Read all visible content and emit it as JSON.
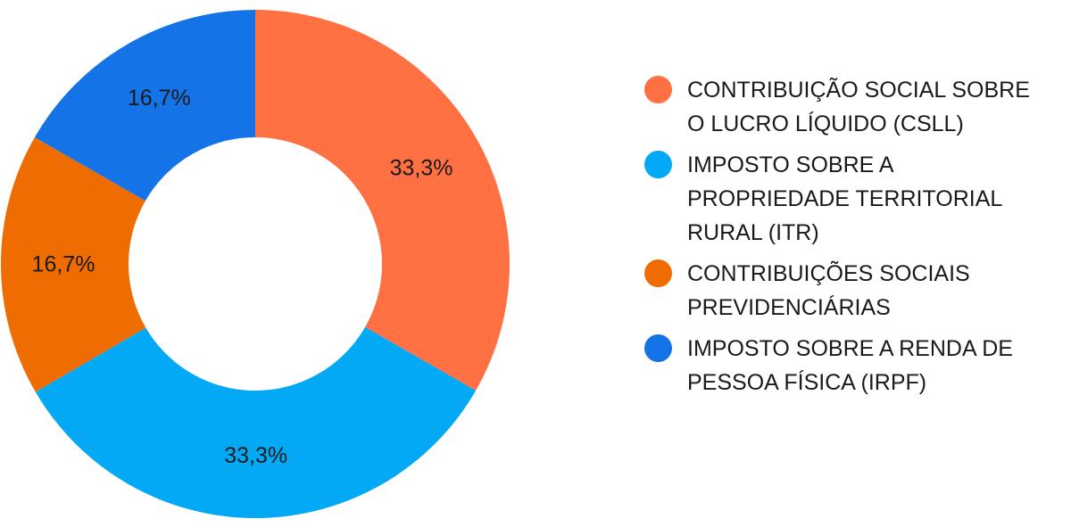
{
  "chart_data": {
    "type": "pie",
    "donut": true,
    "slices": [
      {
        "label": "CONTRIBUIÇÃO SOCIAL SOBRE O LUCRO LÍQUIDO (CSLL)",
        "value": 33.3,
        "display": "33,3%",
        "color": "#FF7043"
      },
      {
        "label": "IMPOSTO SOBRE A PROPRIEDADE TERRITORIAL RURAL (ITR)",
        "value": 33.3,
        "display": "33,3%",
        "color": "#03A9F4"
      },
      {
        "label": "CONTRIBUIÇÕES SOCIAIS PREVIDENCIÁRIAS",
        "value": 16.7,
        "display": "16,7%",
        "color": "#EF6C00"
      },
      {
        "label": "IMPOSTO SOBRE A RENDA DE PESSOA FÍSICA (IRPF)",
        "value": 16.7,
        "display": "16,7%",
        "color": "#1473E6"
      }
    ],
    "legend_position": "right"
  }
}
